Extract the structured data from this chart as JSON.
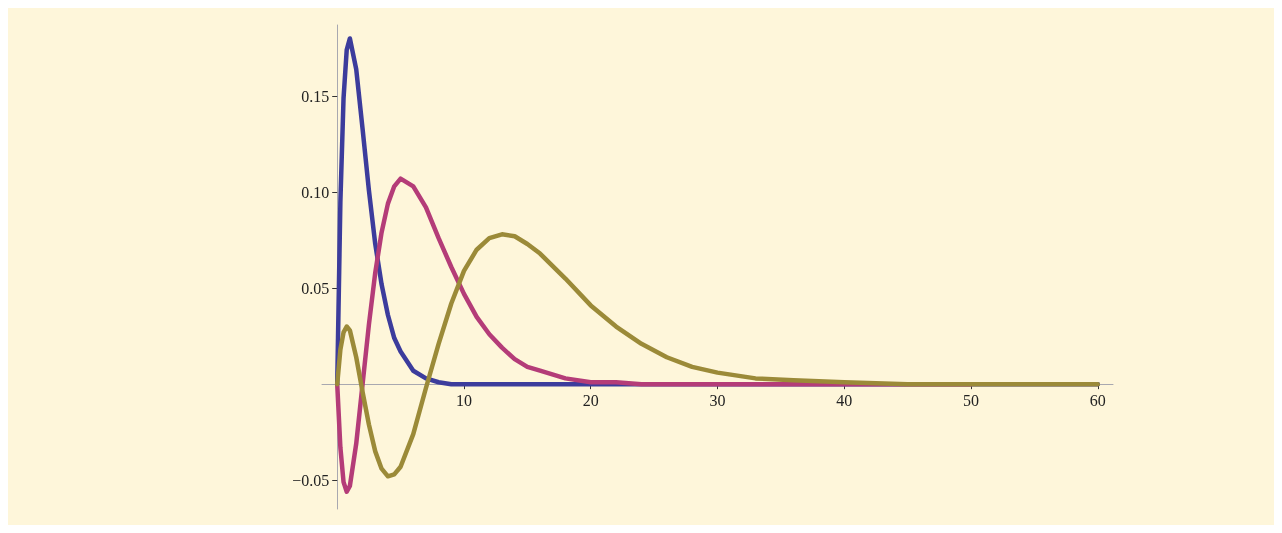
{
  "chart_data": {
    "type": "line",
    "x": [
      0,
      0.25,
      0.5,
      0.75,
      1,
      1.5,
      2,
      2.5,
      3,
      3.5,
      4,
      4.5,
      5,
      6,
      7,
      8,
      9,
      10,
      11,
      12,
      13,
      14,
      15,
      16,
      18,
      20,
      22,
      24,
      26,
      28,
      30,
      33,
      36,
      40,
      45,
      50,
      55,
      60
    ],
    "series": [
      {
        "color": "#3c3c9c",
        "values": [
          0,
          0.095,
          0.149,
          0.174,
          0.18,
          0.164,
          0.133,
          0.101,
          0.073,
          0.052,
          0.036,
          0.024,
          0.017,
          0.007,
          0.003,
          0.001,
          0,
          0,
          0,
          0,
          0,
          0,
          0,
          0,
          0,
          0,
          0,
          0,
          0,
          0,
          0,
          0,
          0,
          0,
          0,
          0,
          0,
          0
        ]
      },
      {
        "color": "#b43c78",
        "values": [
          0,
          -0.033,
          -0.051,
          -0.056,
          -0.053,
          -0.031,
          0,
          0.031,
          0.058,
          0.079,
          0.094,
          0.103,
          0.107,
          0.103,
          0.092,
          0.076,
          0.061,
          0.047,
          0.035,
          0.026,
          0.019,
          0.013,
          0.009,
          0.007,
          0.003,
          0.001,
          0.001,
          0,
          0,
          0,
          0,
          0,
          0,
          0,
          0,
          0,
          null,
          null
        ]
      },
      {
        "color": "#9b8a38",
        "values": [
          0,
          0.018,
          0.027,
          0.03,
          0.028,
          0.014,
          -0.004,
          -0.021,
          -0.035,
          -0.044,
          -0.048,
          -0.047,
          -0.043,
          -0.026,
          -0.002,
          0.021,
          0.042,
          0.059,
          0.07,
          0.076,
          0.078,
          0.077,
          0.073,
          0.068,
          0.055,
          0.041,
          0.03,
          0.021,
          0.014,
          0.009,
          0.006,
          0.003,
          0.002,
          0.001,
          0,
          0,
          0,
          0
        ]
      }
    ],
    "xlim": [
      -1.2,
      61.2
    ],
    "xticks": [
      10,
      20,
      30,
      40,
      50,
      60
    ],
    "ylim": [
      -0.065,
      0.187
    ],
    "yticks": [
      {
        "value": -0.05,
        "label": "−0.05"
      },
      {
        "value": 0.05,
        "label": "0.05"
      },
      {
        "value": 0.1,
        "label": "0.10"
      },
      {
        "value": 0.15,
        "label": "0.15"
      }
    ],
    "grid": false,
    "marker": "none",
    "line_style": "solid"
  }
}
